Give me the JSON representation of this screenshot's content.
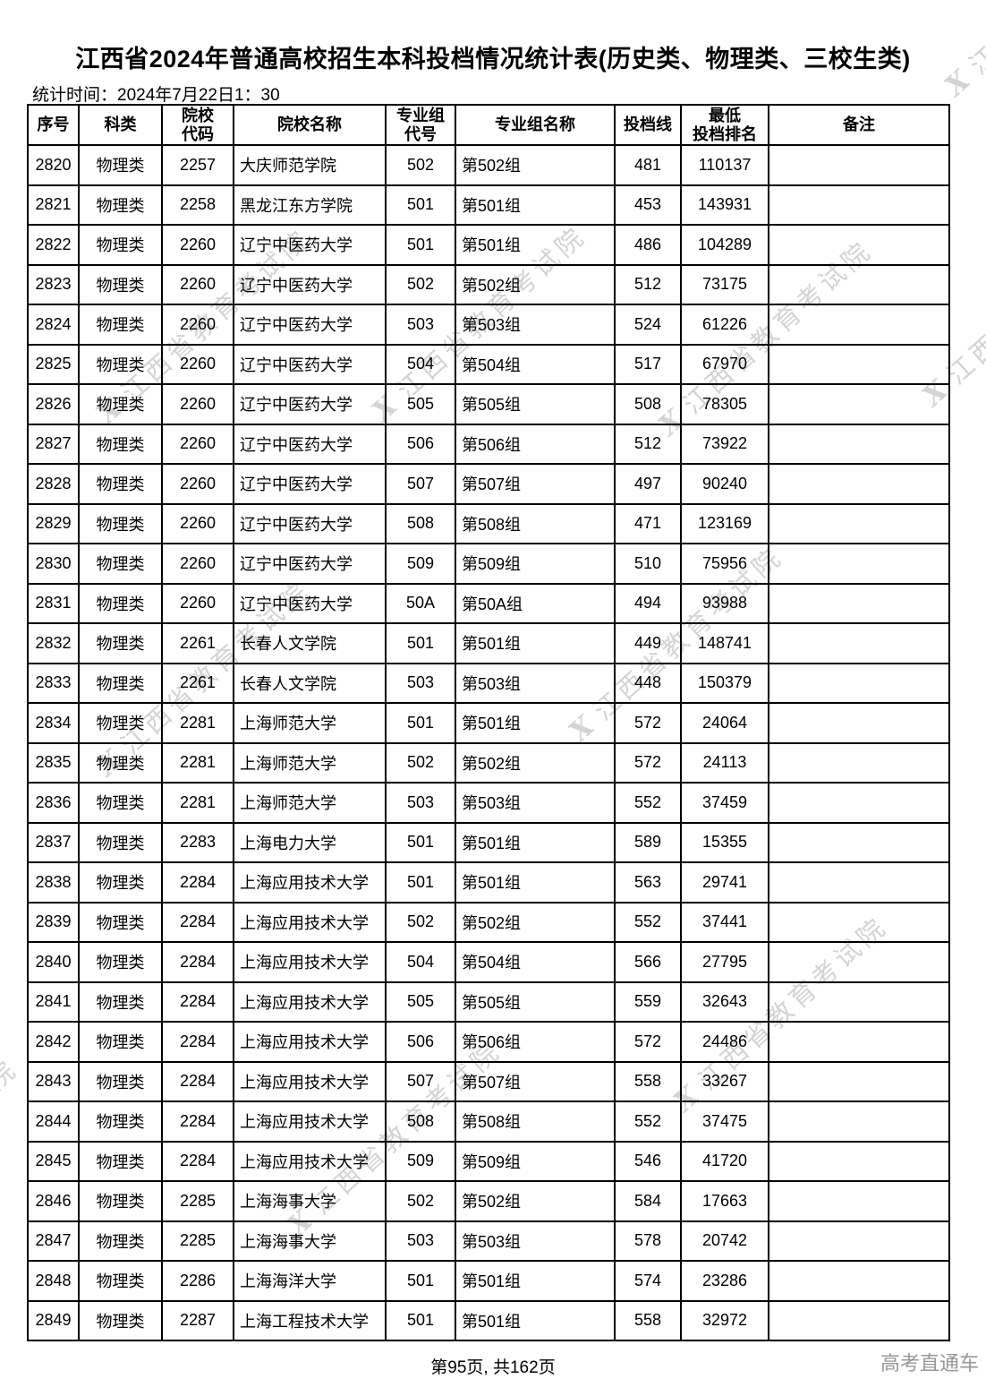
{
  "page": {
    "title": "江西省2024年普通高校招生本科投档情况统计表(历史类、物理类、三校生类)",
    "stat_time": "统计时间：2024年7月22日1：30",
    "footer": {
      "page_indicator": "第95页, 共162页",
      "brand": "高考直通车"
    },
    "watermark": {
      "logo": "X",
      "text": "江西省教育考试院"
    }
  },
  "table": {
    "header": [
      {
        "line1": "序号"
      },
      {
        "line1": "科类"
      },
      {
        "line1": "院校",
        "line2": "代码"
      },
      {
        "line1": "院校名称"
      },
      {
        "line1": "专业组",
        "line2": "代号"
      },
      {
        "line1": "专业组名称"
      },
      {
        "line1": "投档线"
      },
      {
        "line1": "最低",
        "line2": "投档排名"
      },
      {
        "line1": "备注"
      }
    ],
    "rows": [
      [
        "2820",
        "物理类",
        "2257",
        "大庆师范学院",
        "502",
        "第502组",
        "481",
        "110137",
        ""
      ],
      [
        "2821",
        "物理类",
        "2258",
        "黑龙江东方学院",
        "501",
        "第501组",
        "453",
        "143931",
        ""
      ],
      [
        "2822",
        "物理类",
        "2260",
        "辽宁中医药大学",
        "501",
        "第501组",
        "486",
        "104289",
        ""
      ],
      [
        "2823",
        "物理类",
        "2260",
        "辽宁中医药大学",
        "502",
        "第502组",
        "512",
        "73175",
        ""
      ],
      [
        "2824",
        "物理类",
        "2260",
        "辽宁中医药大学",
        "503",
        "第503组",
        "524",
        "61226",
        ""
      ],
      [
        "2825",
        "物理类",
        "2260",
        "辽宁中医药大学",
        "504",
        "第504组",
        "517",
        "67970",
        ""
      ],
      [
        "2826",
        "物理类",
        "2260",
        "辽宁中医药大学",
        "505",
        "第505组",
        "508",
        "78305",
        ""
      ],
      [
        "2827",
        "物理类",
        "2260",
        "辽宁中医药大学",
        "506",
        "第506组",
        "512",
        "73922",
        ""
      ],
      [
        "2828",
        "物理类",
        "2260",
        "辽宁中医药大学",
        "507",
        "第507组",
        "497",
        "90240",
        ""
      ],
      [
        "2829",
        "物理类",
        "2260",
        "辽宁中医药大学",
        "508",
        "第508组",
        "471",
        "123169",
        ""
      ],
      [
        "2830",
        "物理类",
        "2260",
        "辽宁中医药大学",
        "509",
        "第509组",
        "510",
        "75956",
        ""
      ],
      [
        "2831",
        "物理类",
        "2260",
        "辽宁中医药大学",
        "50A",
        "第50A组",
        "494",
        "93988",
        ""
      ],
      [
        "2832",
        "物理类",
        "2261",
        "长春人文学院",
        "501",
        "第501组",
        "449",
        "148741",
        ""
      ],
      [
        "2833",
        "物理类",
        "2261",
        "长春人文学院",
        "503",
        "第503组",
        "448",
        "150379",
        ""
      ],
      [
        "2834",
        "物理类",
        "2281",
        "上海师范大学",
        "501",
        "第501组",
        "572",
        "24064",
        ""
      ],
      [
        "2835",
        "物理类",
        "2281",
        "上海师范大学",
        "502",
        "第502组",
        "572",
        "24113",
        ""
      ],
      [
        "2836",
        "物理类",
        "2281",
        "上海师范大学",
        "503",
        "第503组",
        "552",
        "37459",
        ""
      ],
      [
        "2837",
        "物理类",
        "2283",
        "上海电力大学",
        "501",
        "第501组",
        "589",
        "15355",
        ""
      ],
      [
        "2838",
        "物理类",
        "2284",
        "上海应用技术大学",
        "501",
        "第501组",
        "563",
        "29741",
        ""
      ],
      [
        "2839",
        "物理类",
        "2284",
        "上海应用技术大学",
        "502",
        "第502组",
        "552",
        "37441",
        ""
      ],
      [
        "2840",
        "物理类",
        "2284",
        "上海应用技术大学",
        "504",
        "第504组",
        "566",
        "27795",
        ""
      ],
      [
        "2841",
        "物理类",
        "2284",
        "上海应用技术大学",
        "505",
        "第505组",
        "559",
        "32643",
        ""
      ],
      [
        "2842",
        "物理类",
        "2284",
        "上海应用技术大学",
        "506",
        "第506组",
        "572",
        "24486",
        ""
      ],
      [
        "2843",
        "物理类",
        "2284",
        "上海应用技术大学",
        "507",
        "第507组",
        "558",
        "33267",
        ""
      ],
      [
        "2844",
        "物理类",
        "2284",
        "上海应用技术大学",
        "508",
        "第508组",
        "552",
        "37475",
        ""
      ],
      [
        "2845",
        "物理类",
        "2284",
        "上海应用技术大学",
        "509",
        "第509组",
        "546",
        "41720",
        ""
      ],
      [
        "2846",
        "物理类",
        "2285",
        "上海海事大学",
        "502",
        "第502组",
        "584",
        "17663",
        ""
      ],
      [
        "2847",
        "物理类",
        "2285",
        "上海海事大学",
        "503",
        "第503组",
        "578",
        "20742",
        ""
      ],
      [
        "2848",
        "物理类",
        "2286",
        "上海海洋大学",
        "501",
        "第501组",
        "574",
        "23286",
        ""
      ],
      [
        "2849",
        "物理类",
        "2287",
        "上海工程技术大学",
        "501",
        "第501组",
        "558",
        "32972",
        ""
      ]
    ]
  }
}
